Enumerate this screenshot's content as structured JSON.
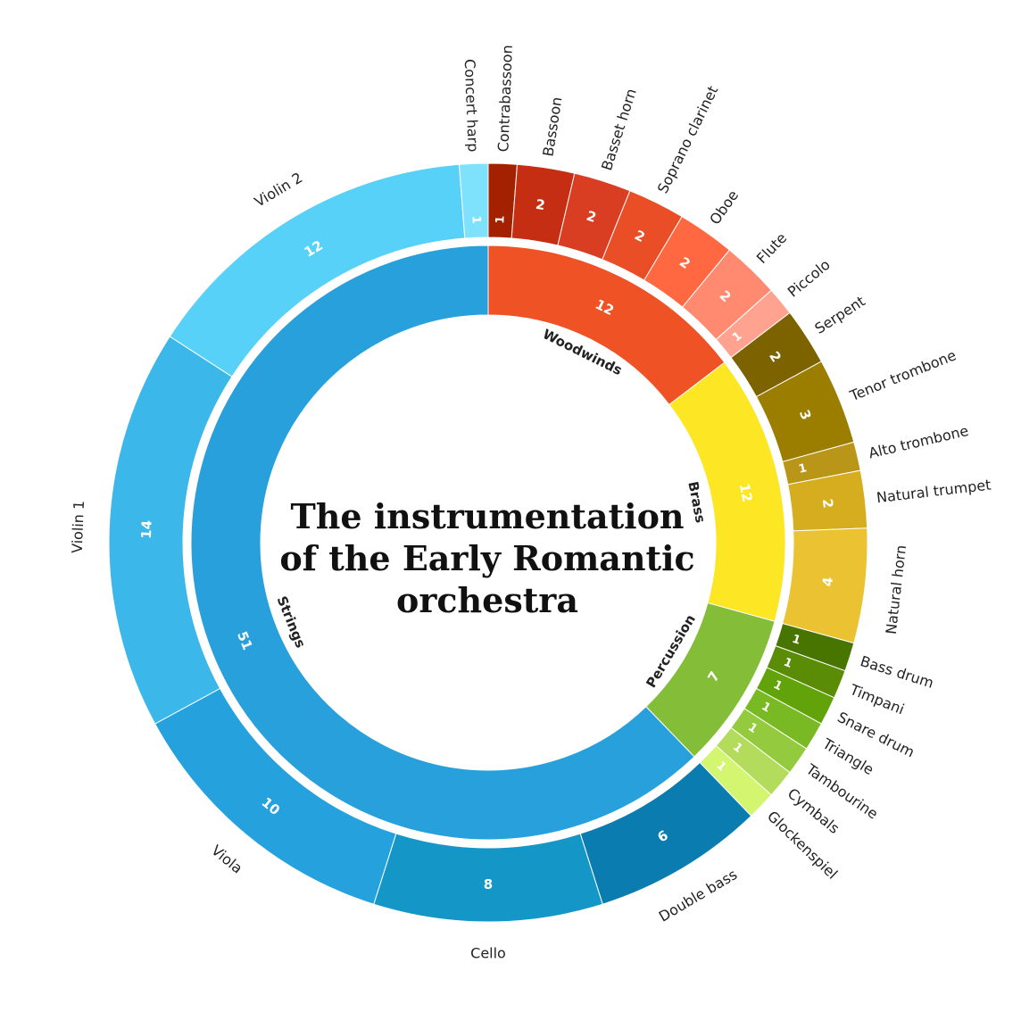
{
  "chart_data": {
    "type": "sunburst",
    "title_lines": [
      "The instrumentation",
      "of the Early Romantic",
      "orchestra"
    ],
    "groups": [
      {
        "name": "Woodwinds",
        "value": 12,
        "color": "#ee5225",
        "children": [
          {
            "name": "Contrabassoon",
            "value": 1,
            "color": "#a42100"
          },
          {
            "name": "Bassoon",
            "value": 2,
            "color": "#c52e12"
          },
          {
            "name": "Basset horn",
            "value": 2,
            "color": "#d93d22"
          },
          {
            "name": "Soprano clarinet",
            "value": 2,
            "color": "#ea4e26"
          },
          {
            "name": "Oboe",
            "value": 2,
            "color": "#ff6840"
          },
          {
            "name": "Flute",
            "value": 2,
            "color": "#ff8a70"
          },
          {
            "name": "Piccolo",
            "value": 1,
            "color": "#ffa390"
          }
        ]
      },
      {
        "name": "Brass",
        "value": 12,
        "color": "#fde624",
        "children": [
          {
            "name": "Serpent",
            "value": 2,
            "color": "#7c6300"
          },
          {
            "name": "Tenor trombone",
            "value": 3,
            "color": "#9b7d00"
          },
          {
            "name": "Alto trombone",
            "value": 1,
            "color": "#b99618"
          },
          {
            "name": "Natural trumpet",
            "value": 2,
            "color": "#d7ad20"
          },
          {
            "name": "Natural horn",
            "value": 4,
            "color": "#ebc232"
          }
        ]
      },
      {
        "name": "Percussion",
        "value": 7,
        "color": "#84bd38",
        "children": [
          {
            "name": "Bass drum",
            "value": 1,
            "color": "#487400"
          },
          {
            "name": "Timpani",
            "value": 1,
            "color": "#5b8c05"
          },
          {
            "name": "Snare drum",
            "value": 1,
            "color": "#63a30a"
          },
          {
            "name": "Triangle",
            "value": 1,
            "color": "#79b923"
          },
          {
            "name": "Tambourine",
            "value": 1,
            "color": "#94ca3e"
          },
          {
            "name": "Cymbals",
            "value": 1,
            "color": "#b4dc5c"
          },
          {
            "name": "Glockenspiel",
            "value": 1,
            "color": "#d3f56f"
          }
        ]
      },
      {
        "name": "Strings",
        "value": 51,
        "color": "#28a0dc",
        "children": [
          {
            "name": "Double bass",
            "value": 6,
            "color": "#0a7cb0"
          },
          {
            "name": "Cello",
            "value": 8,
            "color": "#1496c6"
          },
          {
            "name": "Viola",
            "value": 10,
            "color": "#25a1de"
          },
          {
            "name": "Violin 1",
            "value": 14,
            "color": "#3cb7ea"
          },
          {
            "name": "Violin 2",
            "value": 12,
            "color": "#57d1f8"
          },
          {
            "name": "Concert harp",
            "value": 1,
            "color": "#7fe2fd"
          }
        ]
      }
    ]
  }
}
